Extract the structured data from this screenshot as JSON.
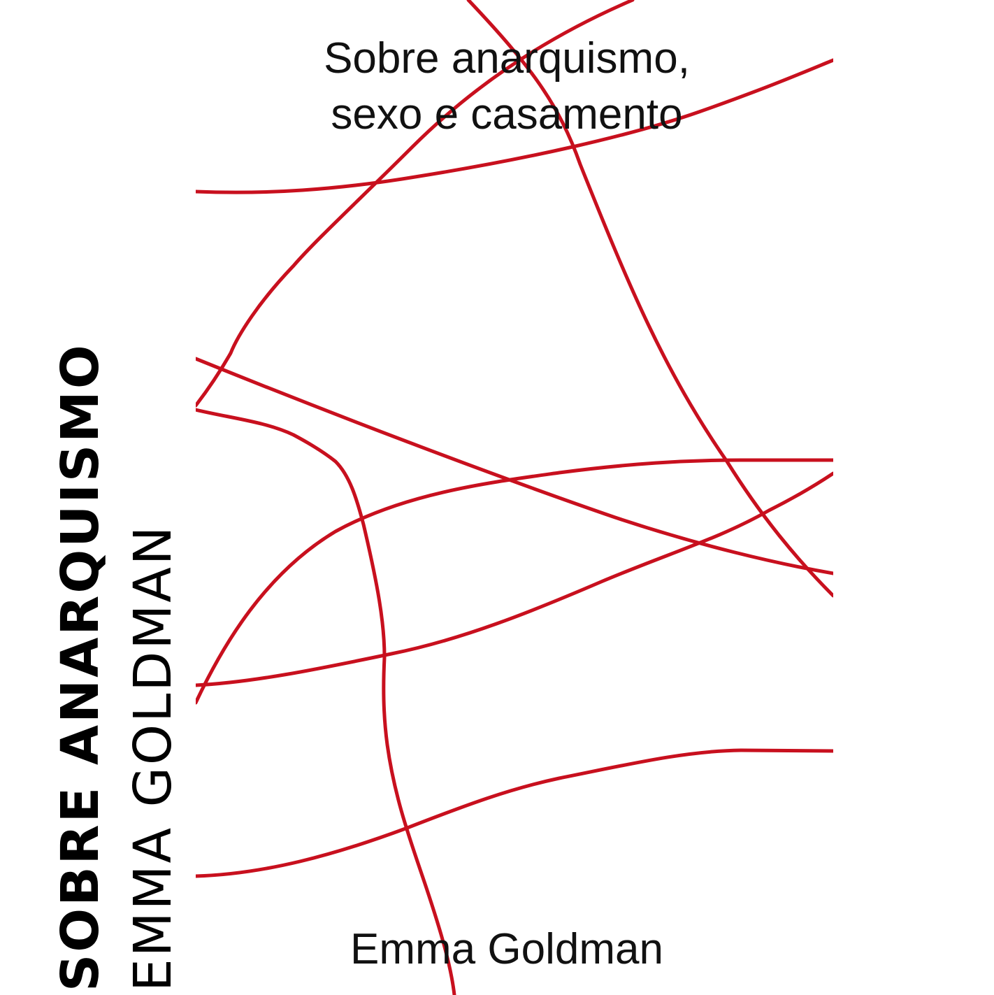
{
  "spine": {
    "title": "SOBRE ANARQUISMO",
    "author": "EMMA GOLDMAN"
  },
  "cover": {
    "title_line1": "Sobre anarquismo,",
    "title_line2": "sexo e casamento",
    "author": "Emma Goldman",
    "line_color": "#c8101e",
    "background": "#ffffff"
  }
}
